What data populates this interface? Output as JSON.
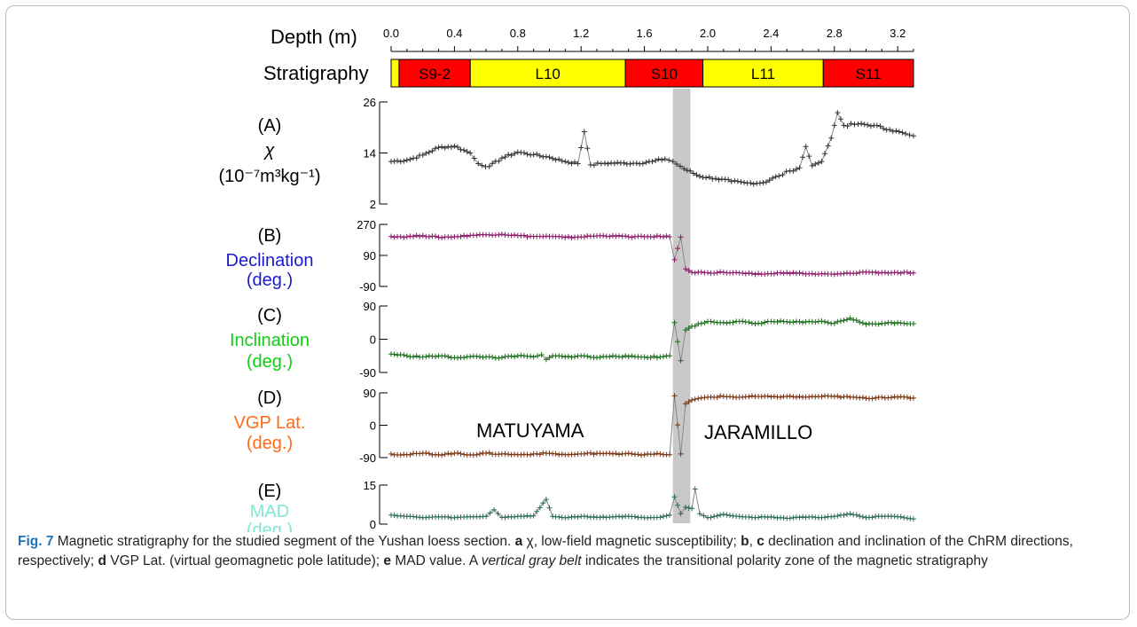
{
  "chart_data": {
    "type": "line",
    "depth_axis": {
      "title": "Depth (m)",
      "range": [
        0,
        3.3
      ],
      "ticks": [
        "0.0",
        "0.4",
        "0.8",
        "1.2",
        "1.6",
        "2.0",
        "2.4",
        "2.8",
        "3.2"
      ]
    },
    "stratigraphy": {
      "label": "Stratigraphy",
      "units": [
        {
          "name": "",
          "from": 0.0,
          "to": 0.05,
          "color": "#ffff00"
        },
        {
          "name": "S9-2",
          "from": 0.05,
          "to": 0.5,
          "color": "#ff0000"
        },
        {
          "name": "L10",
          "from": 0.5,
          "to": 1.48,
          "color": "#ffff00"
        },
        {
          "name": "S10",
          "from": 1.48,
          "to": 1.97,
          "color": "#ff0000"
        },
        {
          "name": "L11",
          "from": 1.97,
          "to": 2.73,
          "color": "#ffff00"
        },
        {
          "name": "S11",
          "from": 2.73,
          "to": 3.3,
          "color": "#ff0000"
        }
      ]
    },
    "transition_zone": {
      "from": 1.78,
      "to": 1.89,
      "color": "#c8c8c8"
    },
    "panels": [
      {
        "letter": "(A)",
        "label_lines": [
          "χ",
          "(10⁻⁷m³kg⁻¹)"
        ],
        "label_color": "#000000",
        "series_color": "#333333",
        "ylim": [
          2,
          26
        ],
        "ticks": [
          "2",
          "14",
          "26"
        ],
        "points": [
          [
            0.0,
            12.0
          ],
          [
            0.1,
            12.3
          ],
          [
            0.2,
            13.5
          ],
          [
            0.3,
            15.3
          ],
          [
            0.4,
            15.6
          ],
          [
            0.5,
            14.0
          ],
          [
            0.55,
            11.5
          ],
          [
            0.62,
            10.8
          ],
          [
            0.7,
            12.8
          ],
          [
            0.8,
            14.2
          ],
          [
            0.9,
            13.6
          ],
          [
            1.0,
            13.0
          ],
          [
            1.1,
            12.0
          ],
          [
            1.18,
            11.5
          ],
          [
            1.22,
            19.0
          ],
          [
            1.26,
            11.2
          ],
          [
            1.35,
            11.6
          ],
          [
            1.45,
            11.6
          ],
          [
            1.55,
            11.6
          ],
          [
            1.65,
            12.0
          ],
          [
            1.73,
            12.6
          ],
          [
            1.78,
            12.0
          ],
          [
            1.85,
            10.3
          ],
          [
            1.95,
            8.5
          ],
          [
            2.05,
            8.0
          ],
          [
            2.15,
            7.3
          ],
          [
            2.25,
            6.9
          ],
          [
            2.35,
            7.0
          ],
          [
            2.45,
            8.6
          ],
          [
            2.52,
            9.8
          ],
          [
            2.58,
            10.5
          ],
          [
            2.62,
            15.5
          ],
          [
            2.66,
            11.0
          ],
          [
            2.72,
            12.0
          ],
          [
            2.78,
            17.5
          ],
          [
            2.82,
            23.5
          ],
          [
            2.86,
            20.5
          ],
          [
            2.95,
            20.8
          ],
          [
            3.05,
            20.5
          ],
          [
            3.15,
            19.5
          ],
          [
            3.25,
            18.5
          ],
          [
            3.3,
            18.0
          ]
        ]
      },
      {
        "letter": "(B)",
        "label_lines": [
          "Declination",
          "(deg.)"
        ],
        "label_color": "#1a1acc",
        "series_color": "#8b1a6b",
        "ylim": [
          -90,
          270
        ],
        "ticks": [
          "-90",
          "90",
          "270"
        ],
        "points": [
          [
            0.0,
            200
          ],
          [
            0.1,
            198
          ],
          [
            0.2,
            205
          ],
          [
            0.3,
            195
          ],
          [
            0.4,
            198
          ],
          [
            0.5,
            206
          ],
          [
            0.6,
            210
          ],
          [
            0.7,
            213
          ],
          [
            0.8,
            205
          ],
          [
            0.9,
            200
          ],
          [
            1.0,
            200
          ],
          [
            1.1,
            194
          ],
          [
            1.2,
            198
          ],
          [
            1.3,
            203
          ],
          [
            1.4,
            204
          ],
          [
            1.5,
            198
          ],
          [
            1.6,
            198
          ],
          [
            1.7,
            200
          ],
          [
            1.76,
            198
          ],
          [
            1.79,
            65
          ],
          [
            1.83,
            196
          ],
          [
            1.86,
            12
          ],
          [
            1.9,
            -8
          ],
          [
            2.0,
            -10
          ],
          [
            2.1,
            -8
          ],
          [
            2.2,
            -12
          ],
          [
            2.3,
            -20
          ],
          [
            2.4,
            -16
          ],
          [
            2.5,
            -10
          ],
          [
            2.6,
            -15
          ],
          [
            2.7,
            -18
          ],
          [
            2.8,
            -20
          ],
          [
            2.9,
            -14
          ],
          [
            3.0,
            -6
          ],
          [
            3.1,
            -10
          ],
          [
            3.2,
            -10
          ],
          [
            3.3,
            -12
          ]
        ]
      },
      {
        "letter": "(C)",
        "label_lines": [
          "Inclination",
          "(deg.)"
        ],
        "label_color": "#11cc11",
        "series_color": "#1a6e1a",
        "ylim": [
          -90,
          90
        ],
        "ticks": [
          "-90",
          "0",
          "90"
        ],
        "points": [
          [
            0.0,
            -40
          ],
          [
            0.1,
            -45
          ],
          [
            0.2,
            -48
          ],
          [
            0.3,
            -45
          ],
          [
            0.4,
            -50
          ],
          [
            0.5,
            -47
          ],
          [
            0.6,
            -48
          ],
          [
            0.7,
            -50
          ],
          [
            0.8,
            -45
          ],
          [
            0.9,
            -48
          ],
          [
            0.95,
            -42
          ],
          [
            0.98,
            -55
          ],
          [
            1.02,
            -45
          ],
          [
            1.1,
            -48
          ],
          [
            1.2,
            -45
          ],
          [
            1.3,
            -50
          ],
          [
            1.4,
            -45
          ],
          [
            1.5,
            -47
          ],
          [
            1.6,
            -48
          ],
          [
            1.7,
            -48
          ],
          [
            1.76,
            -45
          ],
          [
            1.79,
            45
          ],
          [
            1.83,
            -58
          ],
          [
            1.86,
            25
          ],
          [
            1.9,
            35
          ],
          [
            2.0,
            48
          ],
          [
            2.1,
            45
          ],
          [
            2.2,
            48
          ],
          [
            2.3,
            42
          ],
          [
            2.4,
            48
          ],
          [
            2.5,
            47
          ],
          [
            2.6,
            45
          ],
          [
            2.7,
            48
          ],
          [
            2.8,
            43
          ],
          [
            2.9,
            57
          ],
          [
            3.0,
            40
          ],
          [
            3.1,
            43
          ],
          [
            3.2,
            45
          ],
          [
            3.3,
            42
          ]
        ]
      },
      {
        "letter": "(D)",
        "label_lines": [
          "VGP Lat.",
          "(deg.)"
        ],
        "label_color": "#ff6a13",
        "series_color": "#7a3512",
        "ylim": [
          -90,
          90
        ],
        "ticks": [
          "-90",
          "0",
          "90"
        ],
        "points": [
          [
            0.0,
            -80
          ],
          [
            0.1,
            -82
          ],
          [
            0.2,
            -78
          ],
          [
            0.3,
            -82
          ],
          [
            0.4,
            -78
          ],
          [
            0.5,
            -82
          ],
          [
            0.6,
            -78
          ],
          [
            0.7,
            -80
          ],
          [
            0.8,
            -82
          ],
          [
            0.9,
            -80
          ],
          [
            1.0,
            -78
          ],
          [
            1.1,
            -82
          ],
          [
            1.2,
            -80
          ],
          [
            1.3,
            -78
          ],
          [
            1.4,
            -80
          ],
          [
            1.5,
            -78
          ],
          [
            1.6,
            -82
          ],
          [
            1.7,
            -80
          ],
          [
            1.76,
            -82
          ],
          [
            1.79,
            82
          ],
          [
            1.83,
            -80
          ],
          [
            1.86,
            60
          ],
          [
            1.9,
            70
          ],
          [
            2.0,
            78
          ],
          [
            2.1,
            80
          ],
          [
            2.2,
            78
          ],
          [
            2.3,
            80
          ],
          [
            2.4,
            79
          ],
          [
            2.5,
            80
          ],
          [
            2.6,
            78
          ],
          [
            2.7,
            80
          ],
          [
            2.8,
            80
          ],
          [
            2.9,
            78
          ],
          [
            3.0,
            75
          ],
          [
            3.1,
            78
          ],
          [
            3.2,
            78
          ],
          [
            3.3,
            76
          ]
        ]
      },
      {
        "letter": "(E)",
        "label_lines": [
          "MAD",
          "(deg.)"
        ],
        "label_color": "#7fe8d0",
        "series_color": "#2e6b58",
        "ylim": [
          0,
          15
        ],
        "ticks": [
          "0",
          "15"
        ],
        "points": [
          [
            0.0,
            3.5
          ],
          [
            0.1,
            3.0
          ],
          [
            0.2,
            2.5
          ],
          [
            0.3,
            2.8
          ],
          [
            0.4,
            2.5
          ],
          [
            0.5,
            2.8
          ],
          [
            0.6,
            3.0
          ],
          [
            0.65,
            5.5
          ],
          [
            0.7,
            2.6
          ],
          [
            0.8,
            3.0
          ],
          [
            0.9,
            3.2
          ],
          [
            0.98,
            9.5
          ],
          [
            1.02,
            3.0
          ],
          [
            1.1,
            2.5
          ],
          [
            1.2,
            3.0
          ],
          [
            1.3,
            2.6
          ],
          [
            1.4,
            2.8
          ],
          [
            1.5,
            3.0
          ],
          [
            1.6,
            2.5
          ],
          [
            1.7,
            2.6
          ],
          [
            1.76,
            3.5
          ],
          [
            1.79,
            10.5
          ],
          [
            1.83,
            4.0
          ],
          [
            1.86,
            6.5
          ],
          [
            1.9,
            6.0
          ],
          [
            1.92,
            13.5
          ],
          [
            1.95,
            4.0
          ],
          [
            2.0,
            2.5
          ],
          [
            2.1,
            3.8
          ],
          [
            2.2,
            3.0
          ],
          [
            2.3,
            2.5
          ],
          [
            2.4,
            2.8
          ],
          [
            2.5,
            2.2
          ],
          [
            2.6,
            2.8
          ],
          [
            2.7,
            2.5
          ],
          [
            2.8,
            3.0
          ],
          [
            2.9,
            4.0
          ],
          [
            3.0,
            2.5
          ],
          [
            3.1,
            3.0
          ],
          [
            3.2,
            2.8
          ],
          [
            3.3,
            2.0
          ]
        ]
      }
    ],
    "annotations": [
      "MATUYAMA",
      "JARAMILLO"
    ]
  },
  "caption": {
    "fig_label": "Fig. 7",
    "t1": " Magnetic stratigraphy for the studied segment of the Yushan loess section. ",
    "a": "a",
    "t2": " χ, low-field magnetic susceptibility; ",
    "b": "b",
    "comma": ", ",
    "c": "c",
    "t3": " declination and inclination of the ChRM directions, respectively; ",
    "d": "d",
    "t4": " VGP Lat. (virtual geomagnetic pole latitude); ",
    "e": "e",
    "t5": " MAD value. A ",
    "belt": "vertical gray belt",
    "t6": " indicates the transitional polarity zone of the magnetic stratigraphy"
  }
}
